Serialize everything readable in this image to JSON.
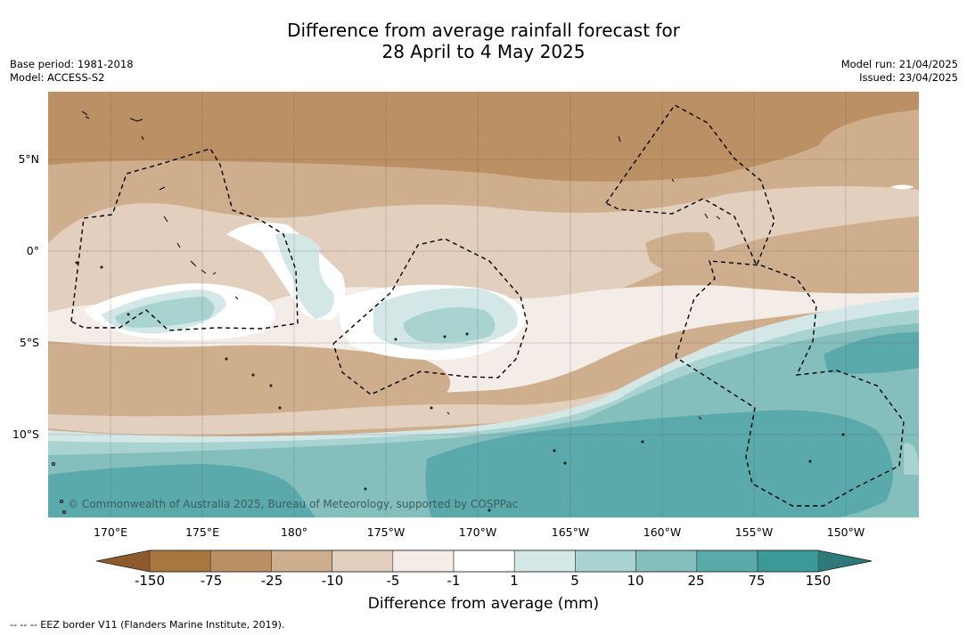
{
  "title": {
    "line1": "Difference from average rainfall forecast for",
    "line2": "28 April to 4 May 2025"
  },
  "meta_left": {
    "base_period": "Base period: 1981-2018",
    "model": "Model: ACCESS-S2"
  },
  "meta_right": {
    "model_run": "Model run: 21/04/2025",
    "issued": "Issued: 23/04/2025"
  },
  "lat_labels": [
    "5°N",
    "0°",
    "5°S",
    "10°S"
  ],
  "lon_labels": [
    "170°E",
    "175°E",
    "180°",
    "175°W",
    "170°W",
    "165°W",
    "160°W",
    "155°W",
    "150°W"
  ],
  "copyright": "© Commonwealth of Australia 2025, Bureau of Meteorology, supported by COSPPac",
  "colorbar": {
    "ticks": [
      "-150",
      "-75",
      "-25",
      "-10",
      "-5",
      "-1",
      "1",
      "5",
      "10",
      "25",
      "75",
      "150"
    ],
    "colors": [
      "#a8763f",
      "#bb9065",
      "#ceae8d",
      "#e2cfbd",
      "#f4ece7",
      "#ffffff",
      "#d3e8e6",
      "#a9d3d0",
      "#84bfbd",
      "#5aaaab",
      "#3a9a98"
    ],
    "under_color": "#8d5a2b",
    "over_color": "#2e7a7a",
    "label": "Difference from average (mm)"
  },
  "legend_note": "--  --  -- EEZ border V11 (Flanders Marine Institute, 2019)."
}
